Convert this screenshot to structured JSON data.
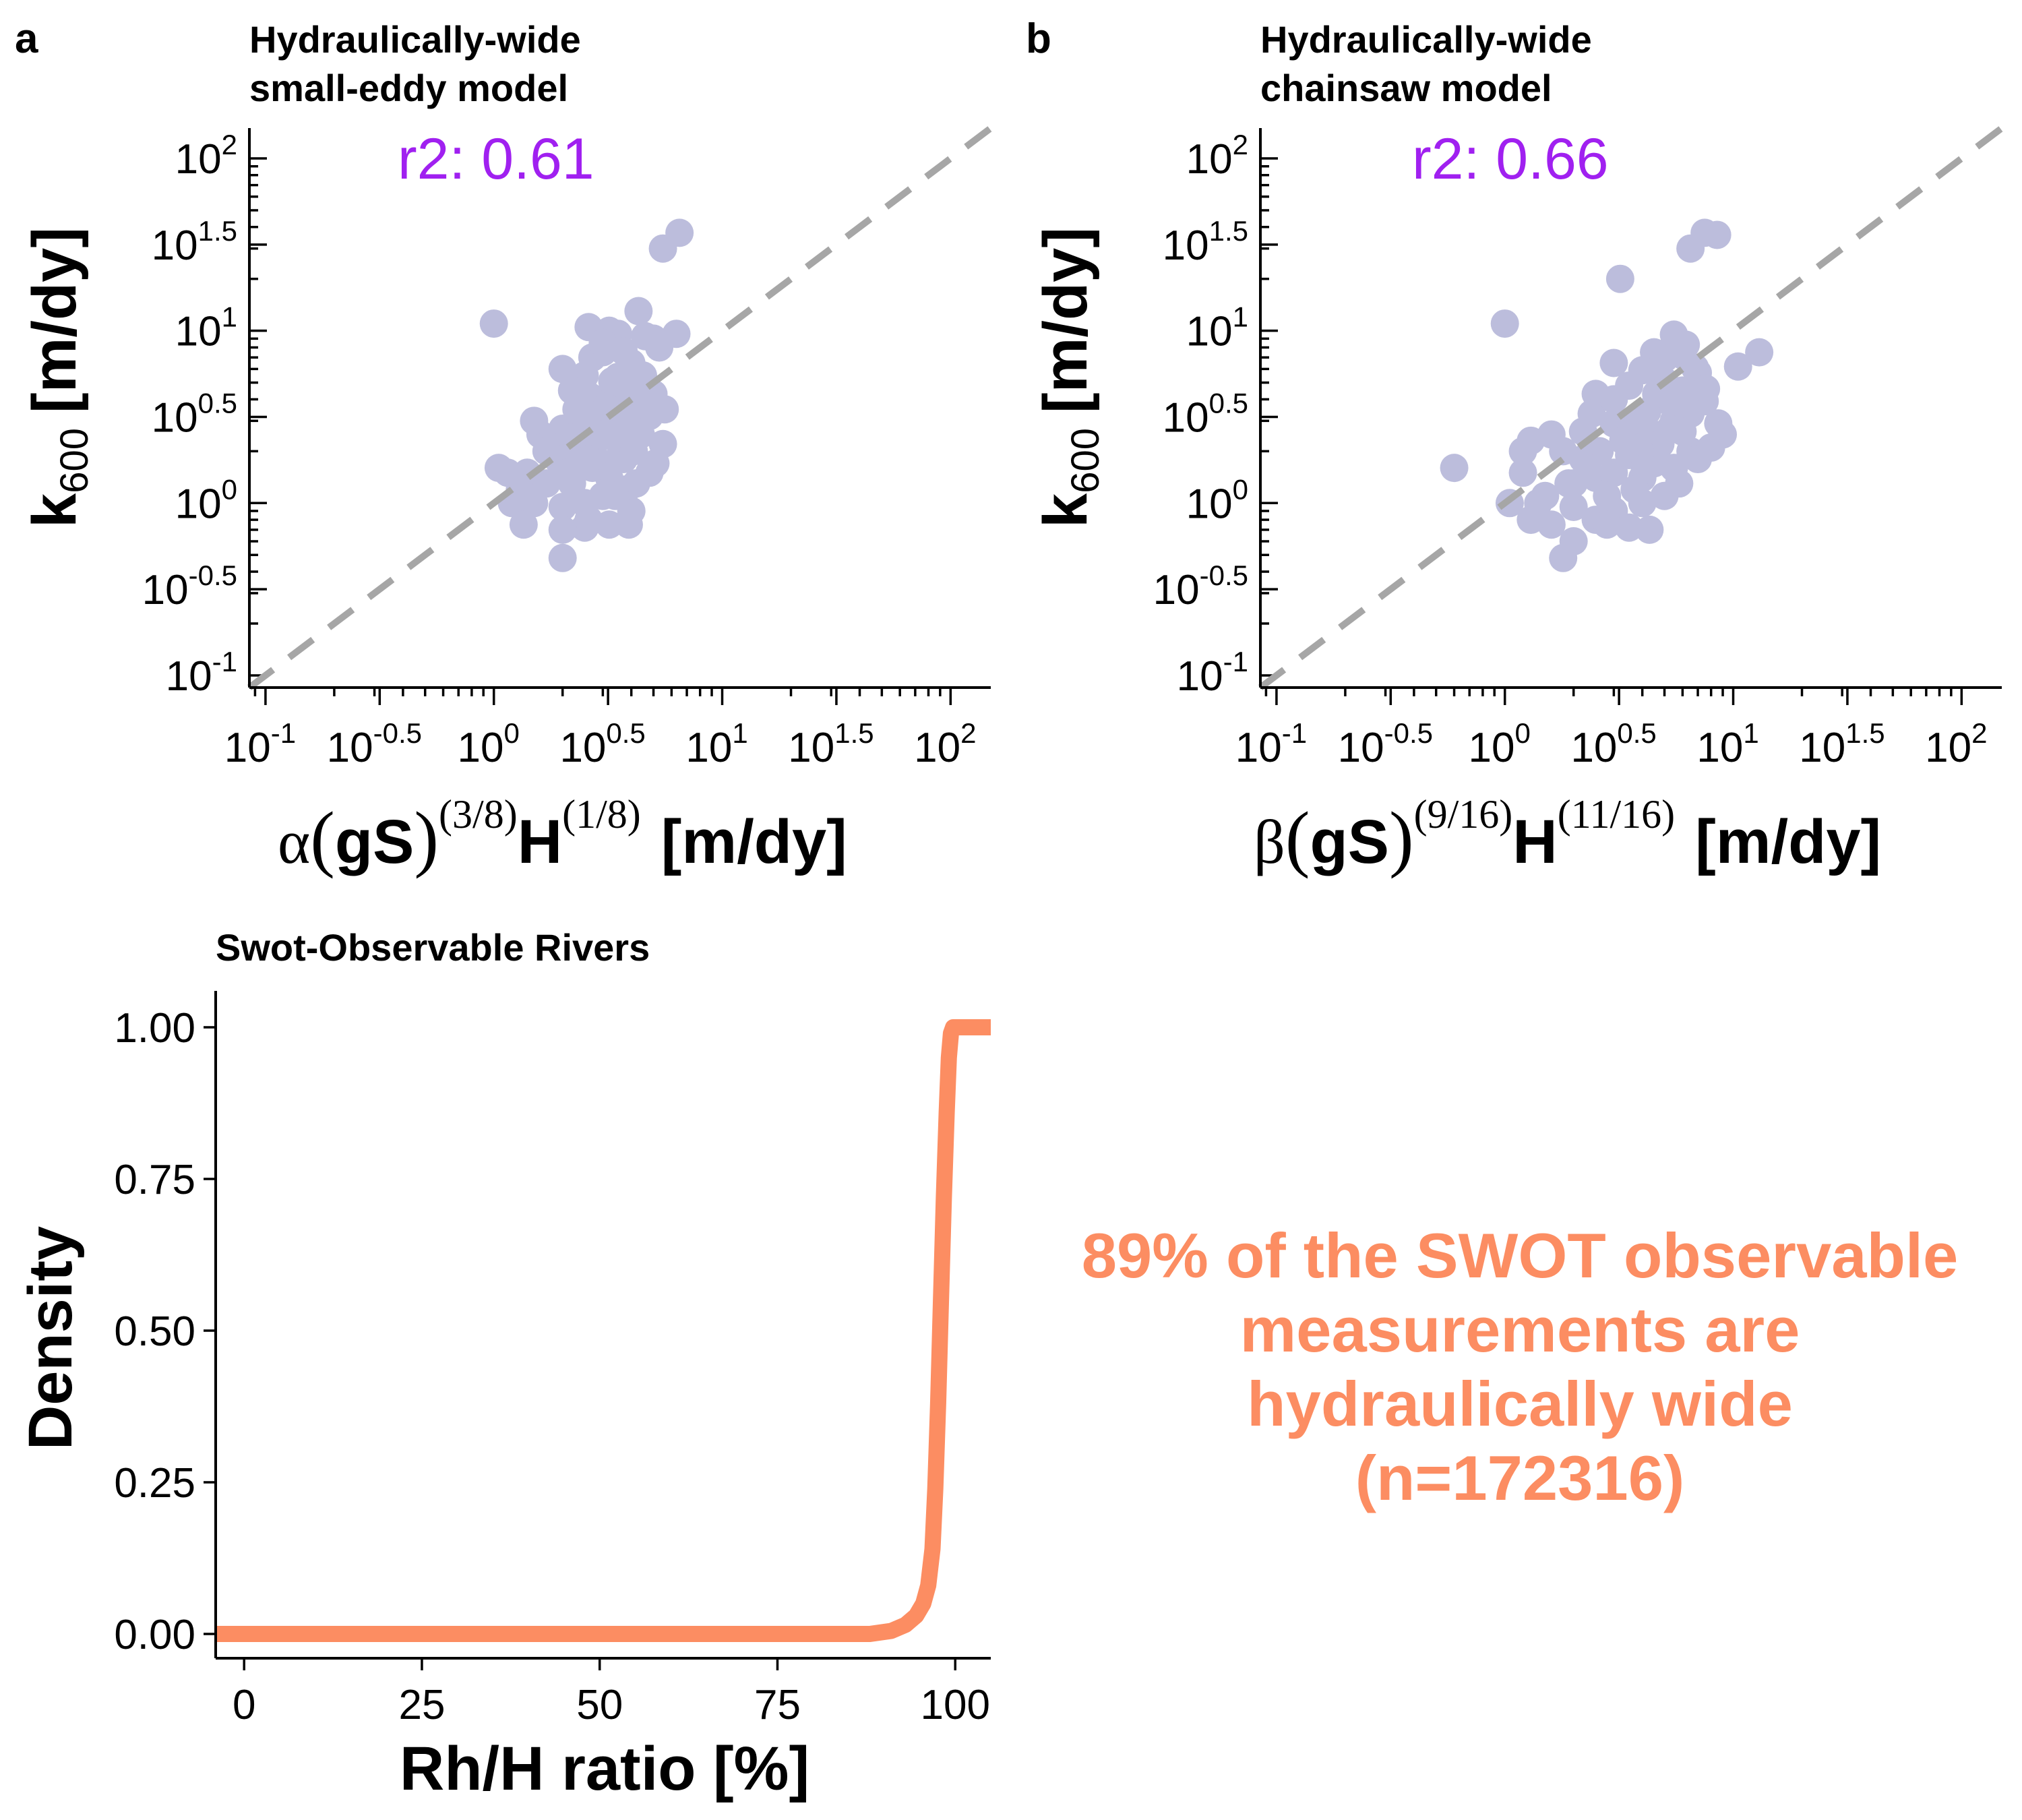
{
  "figure": {
    "panel_a": {
      "letter": "a",
      "title_line1": "Hydraulically-wide",
      "title_line2": "small-eddy model",
      "r2": "r2: 0.61",
      "ylabel": "k",
      "ylabel_subscript": "600",
      "ylabel_unit": "[m/dy]",
      "xlabel_prefix": "α",
      "xlabel_gs": "gS",
      "xlabel_exp1": "(3/8)",
      "xlabel_h": "H",
      "xlabel_exp2": "(1/8)",
      "xlabel_unit": "[m/dy]"
    },
    "panel_b": {
      "letter": "b",
      "title_line1": "Hydraulically-wide",
      "title_line2": "chainsaw model",
      "r2": "r2: 0.66",
      "ylabel": "k",
      "ylabel_subscript": "600",
      "ylabel_unit": "[m/dy]",
      "xlabel_prefix": "β",
      "xlabel_gs": "gS",
      "xlabel_exp1": "(9/16)",
      "xlabel_h": "H",
      "xlabel_exp2": "(11/16)",
      "xlabel_unit": "[m/dy]"
    },
    "panel_c": {
      "title": "Swot-Observable Rivers",
      "xlabel": "Rh/H ratio [%]",
      "ylabel": "Density"
    },
    "annotation": {
      "line1": "89% of the SWOT observable",
      "line2": "measurements are",
      "line3": "hydraulically wide",
      "line4": "(n=172316)"
    },
    "colors": {
      "points": "#BCBDDC",
      "reference_line": "#A6A6A6",
      "r2_text": "#A020F0",
      "density_line": "#FC8D62",
      "annotation": "#FC8D62"
    }
  },
  "chart_data": [
    {
      "type": "scatter",
      "panel": "a",
      "title": "Hydraulically-wide small-eddy model",
      "xlabel": "α(gS)^(3/8)H^(1/8) [m/dy]",
      "ylabel": "k600 [m/dy]",
      "x_scale": "log10",
      "y_scale": "log10",
      "xlim": [
        0.085,
        150
      ],
      "ylim": [
        0.085,
        150
      ],
      "x_ticks": [
        {
          "base": "10",
          "exp": "-1"
        },
        {
          "base": "10",
          "exp": "-0.5"
        },
        {
          "base": "10",
          "exp": "0"
        },
        {
          "base": "10",
          "exp": "0.5"
        },
        {
          "base": "10",
          "exp": "1"
        },
        {
          "base": "10",
          "exp": "1.5"
        },
        {
          "base": "10",
          "exp": "2"
        }
      ],
      "y_ticks": [
        {
          "base": "10",
          "exp": "-1"
        },
        {
          "base": "10",
          "exp": "-0.5"
        },
        {
          "base": "10",
          "exp": "0"
        },
        {
          "base": "10",
          "exp": "0.5"
        },
        {
          "base": "10",
          "exp": "1"
        },
        {
          "base": "10",
          "exp": "1.5"
        },
        {
          "base": "10",
          "exp": "2"
        }
      ],
      "reference_line": "1:1 dashed",
      "annotation": "r2: 0.61",
      "points": [
        [
          1.0,
          11.0
        ],
        [
          1.05,
          1.6
        ],
        [
          2.0,
          6.0
        ],
        [
          5.5,
          30
        ],
        [
          6.5,
          37
        ],
        [
          4.3,
          13
        ],
        [
          3.5,
          9.6
        ],
        [
          2.6,
          10.5
        ],
        [
          3.2,
          10.0
        ],
        [
          3.0,
          7.5
        ],
        [
          2.5,
          5.5
        ],
        [
          2.2,
          4.5
        ],
        [
          2.8,
          4.0
        ],
        [
          3.3,
          5.1
        ],
        [
          4.0,
          6.5
        ],
        [
          3.7,
          7.6
        ],
        [
          4.5,
          5.5
        ],
        [
          3.4,
          3.8
        ],
        [
          2.9,
          3.2
        ],
        [
          2.4,
          2.6
        ],
        [
          2.0,
          2.7
        ],
        [
          1.6,
          2.5
        ],
        [
          1.5,
          3.0
        ],
        [
          1.8,
          2.1
        ],
        [
          2.3,
          2.0
        ],
        [
          2.7,
          1.9
        ],
        [
          3.0,
          1.7
        ],
        [
          3.5,
          2.3
        ],
        [
          4.0,
          2.9
        ],
        [
          4.4,
          2.5
        ],
        [
          4.8,
          3.2
        ],
        [
          4.2,
          3.7
        ],
        [
          5.0,
          4.3
        ],
        [
          5.6,
          3.5
        ],
        [
          5.5,
          2.2
        ],
        [
          5.1,
          1.7
        ],
        [
          4.8,
          1.5
        ],
        [
          3.8,
          1.2
        ],
        [
          3.0,
          1.1
        ],
        [
          2.5,
          1.0
        ],
        [
          2.0,
          0.95
        ],
        [
          1.5,
          1.0
        ],
        [
          1.2,
          1.0
        ],
        [
          1.7,
          1.3
        ],
        [
          2.2,
          1.3
        ],
        [
          3.2,
          1.4
        ],
        [
          3.7,
          1.8
        ],
        [
          2.7,
          1.6
        ],
        [
          4.2,
          1.3
        ],
        [
          1.4,
          1.5
        ],
        [
          2.5,
          0.72
        ],
        [
          2.0,
          0.7
        ],
        [
          2.6,
          0.8
        ],
        [
          3.2,
          0.75
        ],
        [
          3.9,
          0.75
        ],
        [
          2.0,
          0.48
        ],
        [
          1.35,
          0.75
        ],
        [
          4.0,
          0.9
        ],
        [
          2.8,
          2.3
        ],
        [
          3.4,
          2.7
        ],
        [
          3.6,
          4.6
        ],
        [
          2.6,
          4.2
        ],
        [
          4.6,
          4.7
        ],
        [
          4.0,
          5.9
        ],
        [
          2.7,
          7.0
        ],
        [
          3.0,
          8.5
        ],
        [
          3.5,
          5.4
        ],
        [
          5.0,
          9.0
        ],
        [
          2.3,
          3.5
        ],
        [
          3.8,
          3.0
        ],
        [
          1.9,
          1.8
        ],
        [
          2.2,
          2.4
        ],
        [
          3.4,
          1.1
        ],
        [
          2.6,
          1.8
        ],
        [
          1.7,
          2.0
        ],
        [
          1.3,
          1.2
        ],
        [
          2.9,
          2.8
        ],
        [
          4.1,
          2.0
        ],
        [
          3.1,
          3.6
        ],
        [
          2.1,
          1.5
        ],
        [
          5.3,
          8.0
        ],
        [
          6.3,
          9.6
        ],
        [
          1.15,
          1.5
        ],
        [
          4.6,
          9.3
        ]
      ]
    },
    {
      "type": "scatter",
      "panel": "b",
      "title": "Hydraulically-wide chainsaw model",
      "xlabel": "β(gS)^(9/16)H^(11/16) [m/dy]",
      "ylabel": "k600 [m/dy]",
      "x_scale": "log10",
      "y_scale": "log10",
      "xlim": [
        0.085,
        150
      ],
      "ylim": [
        0.085,
        150
      ],
      "x_ticks": [
        {
          "base": "10",
          "exp": "-1"
        },
        {
          "base": "10",
          "exp": "-0.5"
        },
        {
          "base": "10",
          "exp": "0"
        },
        {
          "base": "10",
          "exp": "0.5"
        },
        {
          "base": "10",
          "exp": "1"
        },
        {
          "base": "10",
          "exp": "1.5"
        },
        {
          "base": "10",
          "exp": "2"
        }
      ],
      "y_ticks": [
        {
          "base": "10",
          "exp": "-1"
        },
        {
          "base": "10",
          "exp": "-0.5"
        },
        {
          "base": "10",
          "exp": "0"
        },
        {
          "base": "10",
          "exp": "0.5"
        },
        {
          "base": "10",
          "exp": "1"
        },
        {
          "base": "10",
          "exp": "1.5"
        },
        {
          "base": "10",
          "exp": "2"
        }
      ],
      "reference_line": "1:1 dashed",
      "annotation": "r2: 0.66",
      "points": [
        [
          0.6,
          1.6
        ],
        [
          1.0,
          11.0
        ],
        [
          1.8,
          0.48
        ],
        [
          7.5,
          37
        ],
        [
          8.5,
          36
        ],
        [
          6.5,
          30
        ],
        [
          3.2,
          20
        ],
        [
          13.0,
          7.5
        ],
        [
          10.5,
          6.2
        ],
        [
          5.5,
          9.5
        ],
        [
          4.5,
          7.5
        ],
        [
          3.0,
          6.5
        ],
        [
          2.5,
          4.3
        ],
        [
          3.5,
          4.8
        ],
        [
          4.0,
          5.9
        ],
        [
          5.0,
          5.1
        ],
        [
          6.0,
          4.5
        ],
        [
          7.0,
          5.7
        ],
        [
          7.5,
          3.9
        ],
        [
          6.5,
          3.3
        ],
        [
          5.5,
          3.0
        ],
        [
          4.5,
          2.5
        ],
        [
          3.8,
          2.7
        ],
        [
          3.0,
          2.9
        ],
        [
          2.2,
          2.6
        ],
        [
          1.6,
          2.5
        ],
        [
          1.3,
          2.3
        ],
        [
          1.2,
          1.5
        ],
        [
          1.5,
          1.1
        ],
        [
          2.0,
          1.3
        ],
        [
          2.5,
          1.4
        ],
        [
          3.0,
          1.5
        ],
        [
          3.5,
          1.9
        ],
        [
          4.0,
          1.4
        ],
        [
          4.5,
          1.7
        ],
        [
          5.5,
          1.6
        ],
        [
          6.5,
          2.0
        ],
        [
          8.0,
          2.1
        ],
        [
          9.0,
          2.5
        ],
        [
          5.0,
          1.1
        ],
        [
          4.0,
          1.0
        ],
        [
          3.0,
          0.9
        ],
        [
          2.5,
          0.8
        ],
        [
          2.0,
          0.95
        ],
        [
          1.6,
          0.75
        ],
        [
          1.3,
          0.8
        ],
        [
          1.05,
          1.0
        ],
        [
          2.8,
          0.75
        ],
        [
          3.5,
          0.72
        ],
        [
          4.3,
          0.7
        ],
        [
          2.2,
          1.8
        ],
        [
          1.9,
          1.3
        ],
        [
          2.6,
          2.0
        ],
        [
          3.3,
          2.3
        ],
        [
          4.2,
          3.4
        ],
        [
          5.2,
          3.9
        ],
        [
          3.7,
          1.2
        ],
        [
          6.0,
          2.6
        ],
        [
          1.4,
          1.0
        ],
        [
          2.4,
          3.3
        ],
        [
          4.8,
          2.2
        ],
        [
          7.0,
          1.8
        ],
        [
          6.0,
          7.2
        ],
        [
          3.0,
          4.0
        ],
        [
          1.8,
          2.0
        ],
        [
          2.8,
          1.1
        ],
        [
          5.8,
          1.3
        ],
        [
          3.9,
          2.0
        ],
        [
          4.6,
          4.3
        ],
        [
          8.6,
          2.9
        ],
        [
          6.8,
          6.1
        ],
        [
          2.3,
          1.6
        ],
        [
          3.6,
          3.0
        ],
        [
          5.3,
          2.7
        ],
        [
          2.0,
          0.6
        ],
        [
          1.2,
          2.0
        ],
        [
          4.1,
          1.6
        ],
        [
          7.6,
          4.6
        ],
        [
          5.0,
          6.9
        ],
        [
          6.2,
          8.3
        ]
      ]
    },
    {
      "type": "line",
      "panel": "c",
      "title": "Swot-Observable Rivers",
      "xlabel": "Rh/H ratio [%]",
      "ylabel": "Density",
      "xlim": [
        -4,
        105
      ],
      "ylim": [
        -0.04,
        1.06
      ],
      "x_ticks": [
        "0",
        "25",
        "50",
        "75",
        "100"
      ],
      "y_ticks": [
        "0.00",
        "0.25",
        "0.50",
        "0.75",
        "1.00"
      ],
      "x_tick_values": [
        0,
        25,
        50,
        75,
        100
      ],
      "y_tick_values": [
        0,
        0.25,
        0.5,
        0.75,
        1.0
      ],
      "x": [
        -4,
        88,
        91,
        93,
        94.5,
        95.5,
        96.2,
        96.8,
        97.2,
        97.6,
        98.0,
        98.4,
        98.8,
        99.1,
        99.4,
        99.7,
        100.0,
        105
      ],
      "y": [
        0.0,
        0.0,
        0.005,
        0.015,
        0.03,
        0.05,
        0.08,
        0.14,
        0.24,
        0.38,
        0.55,
        0.72,
        0.86,
        0.95,
        0.99,
        1.0,
        1.0,
        1.0
      ]
    }
  ]
}
